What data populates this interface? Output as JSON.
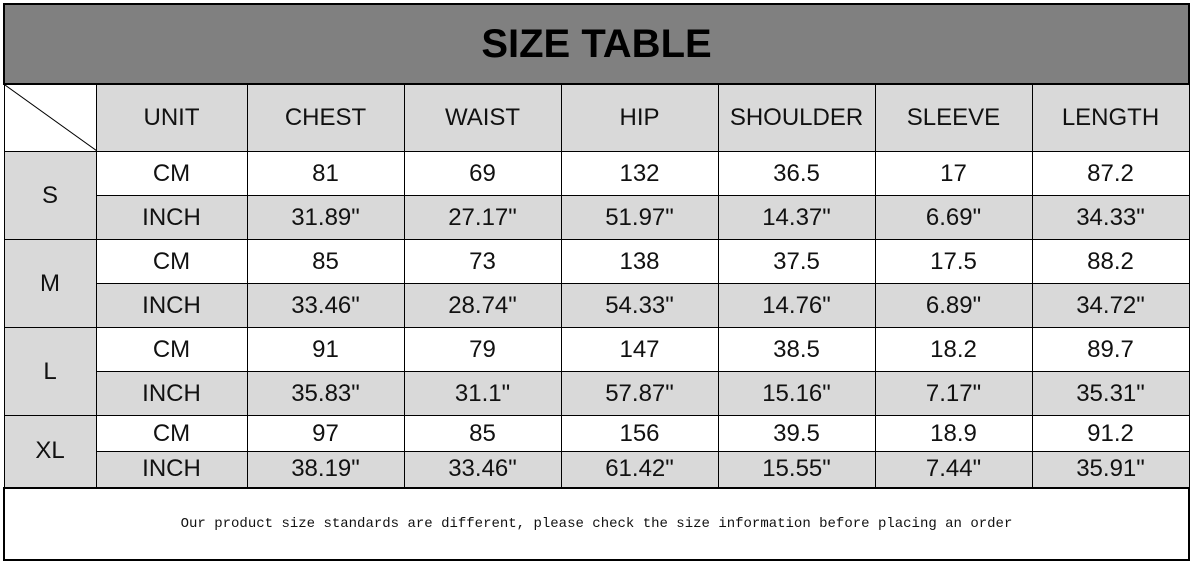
{
  "title": "SIZE TABLE",
  "headers": [
    "UNIT",
    "CHEST",
    "WAIST",
    "HIP",
    "SHOULDER",
    "SLEEVE",
    "LENGTH"
  ],
  "sizes": [
    {
      "size": "S",
      "cm": {
        "unit": "CM",
        "values": [
          "81",
          "69",
          "132",
          "36.5",
          "17",
          "87.2"
        ]
      },
      "inch": {
        "unit": "INCH",
        "values": [
          "31.89\"",
          "27.17\"",
          "51.97\"",
          "14.37\"",
          "6.69\"",
          "34.33\""
        ]
      }
    },
    {
      "size": "M",
      "cm": {
        "unit": "CM",
        "values": [
          "85",
          "73",
          "138",
          "37.5",
          "17.5",
          "88.2"
        ]
      },
      "inch": {
        "unit": "INCH",
        "values": [
          "33.46\"",
          "28.74\"",
          "54.33\"",
          "14.76\"",
          "6.89\"",
          "34.72\""
        ]
      }
    },
    {
      "size": "L",
      "cm": {
        "unit": "CM",
        "values": [
          "91",
          "79",
          "147",
          "38.5",
          "18.2",
          "89.7"
        ]
      },
      "inch": {
        "unit": "INCH",
        "values": [
          "35.83\"",
          "31.1\"",
          "57.87\"",
          "15.16\"",
          "7.17\"",
          "35.31\""
        ]
      }
    },
    {
      "size": "XL",
      "cm": {
        "unit": "CM",
        "values": [
          "97",
          "85",
          "156",
          "39.5",
          "18.9",
          "91.2"
        ]
      },
      "inch": {
        "unit": "INCH",
        "values": [
          "38.19\"",
          "33.46\"",
          "61.42\"",
          "15.55\"",
          "7.44\"",
          "35.91\""
        ]
      }
    }
  ],
  "note": "Our product size standards are different, please check the size information before placing an order",
  "colors": {
    "title_bg": "#808080",
    "header_bg": "#d9d9d9",
    "inch_row_bg": "#d9d9d9",
    "cm_row_bg": "#ffffff"
  }
}
